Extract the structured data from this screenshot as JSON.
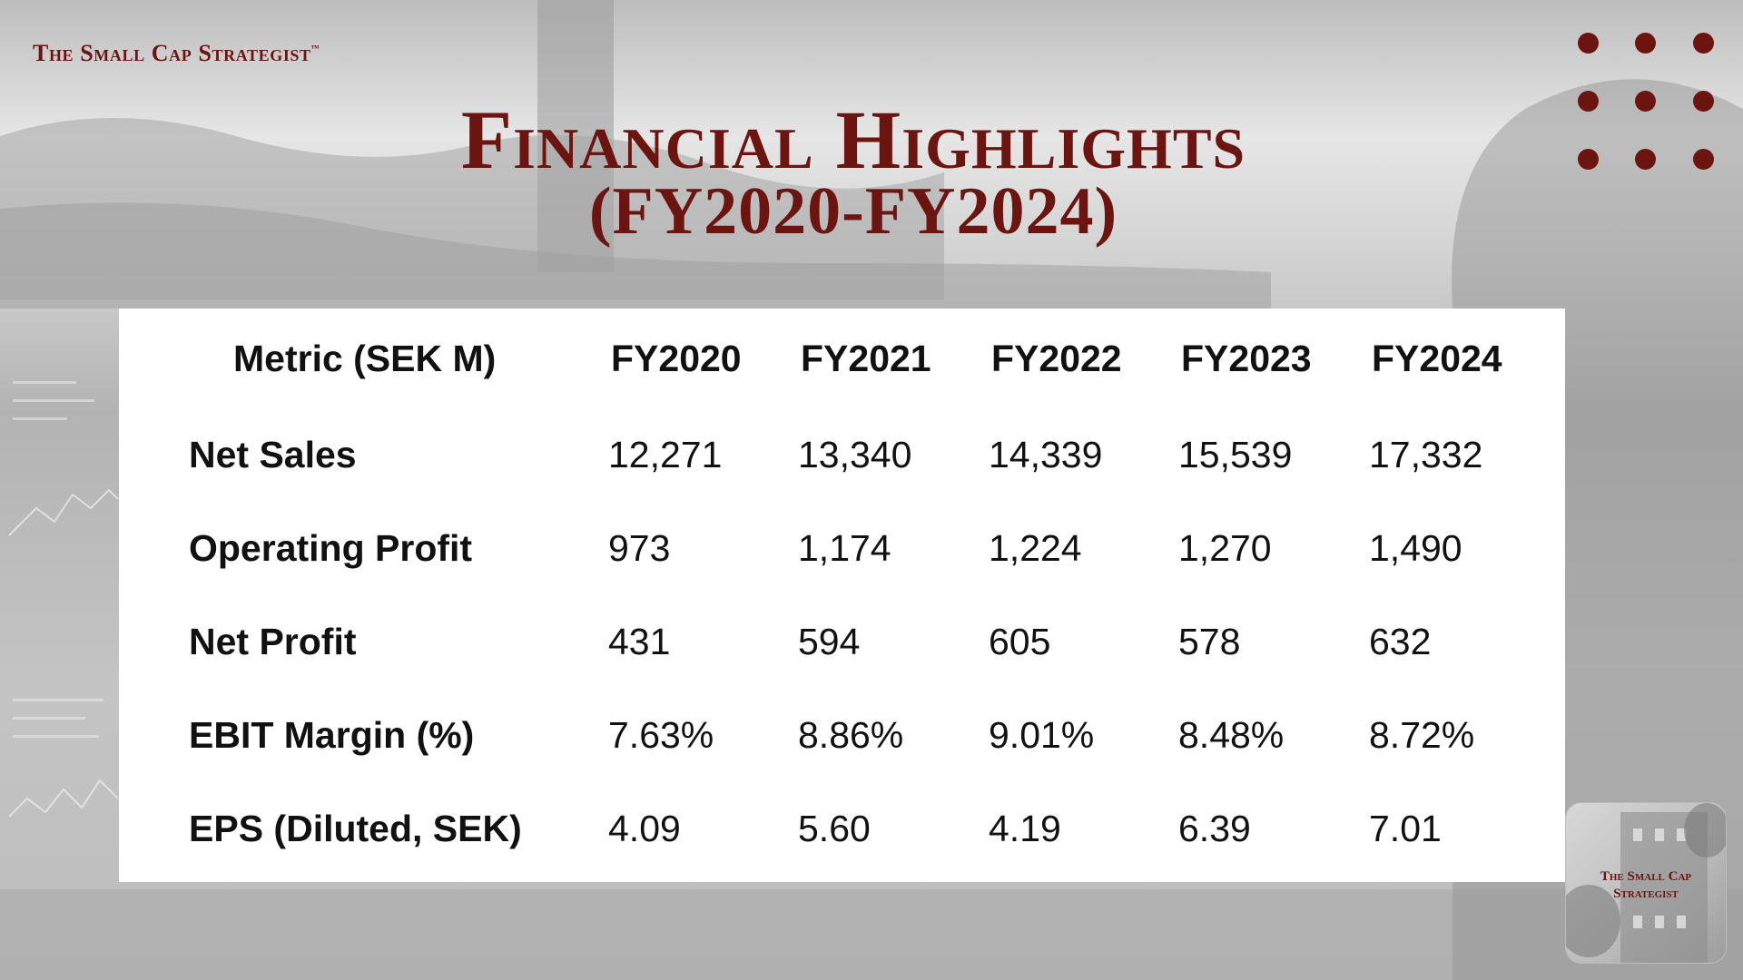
{
  "brand": {
    "text": "The Small Cap Strategist",
    "trademark": "™"
  },
  "title": {
    "line1": "Financial Highlights",
    "line2": "(FY2020-FY2024)"
  },
  "colors": {
    "accent": "#6b1410",
    "panel": "#ffffff",
    "text": "#111111"
  },
  "table": {
    "headers": [
      "Metric (SEK M)",
      "FY2020",
      "FY2021",
      "FY2022",
      "FY2023",
      "FY2024"
    ],
    "rows": [
      {
        "metric": "Net Sales",
        "values": [
          "12,271",
          "13,340",
          "14,339",
          "15,539",
          "17,332"
        ]
      },
      {
        "metric": "Operating Profit",
        "values": [
          "973",
          "1,174",
          "1,224",
          "1,270",
          "1,490"
        ]
      },
      {
        "metric": "Net Profit",
        "values": [
          "431",
          "594",
          "605",
          "578",
          "632"
        ]
      },
      {
        "metric": "EBIT Margin (%)",
        "values": [
          "7.63%",
          "8.86%",
          "9.01%",
          "8.48%",
          "8.72%"
        ]
      },
      {
        "metric": "EPS (Diluted, SEK)",
        "values": [
          "4.09",
          "5.60",
          "4.19",
          "6.39",
          "7.01"
        ]
      }
    ]
  },
  "logo": {
    "line1": "The Small Cap",
    "line2": "Strategist"
  },
  "decoration": {
    "dot_grid": "3x3",
    "dot_color": "#6b1410"
  }
}
